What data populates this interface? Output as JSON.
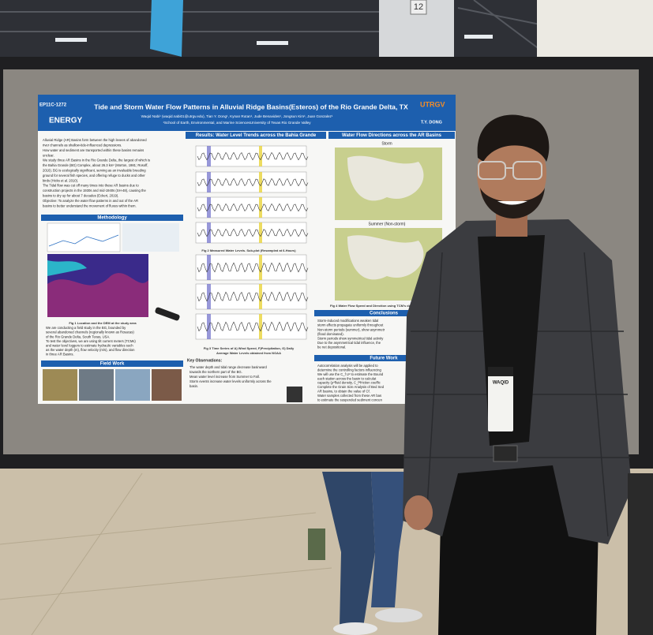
{
  "sign": {
    "number": "12"
  },
  "poster": {
    "id": "EP11C-1272",
    "title": "Tide and Storm Water Flow Patterns in Alluvial Ridge Basins(Esteros) of the Rio Grande Delta, TX",
    "authors": "Waqid Nabi¹ (waqid.nabi01@utrgv.edu), Tian Y. Dong¹, Kynan Rutan¹, Jude Benavides¹, Jongsun Kim¹, Juan Gonzalez¹",
    "affiliation": "¹School of Earth, Environmental, and Marine SciencesUniversity of Texas Rio Grande Valley",
    "logos": [
      "ENERGY",
      "UTRGV",
      "T.Y. DONG"
    ],
    "intro": [
      "Alluvial Ridge (AR) Basins form between the high levees of abandoned",
      "river channels as shallow-tide-influenced depressions.",
      "How water and sediment are transported within these basins remains",
      "unclear.",
      "We study three AR Basins in the Rio Grande Delta, the largest of which is",
      "the Bahia Grande (BG) Complex, about 26.3 km² (Morton, 1981; Rosoff,",
      "2016). BG is ecologically significant, serving as an invaluable breeding",
      "ground for several fish species, and offering refuge to ducks and other",
      "birds (Hicks et al. 2010).",
      "The Tidal flow was cut off many times into these AR basins due to",
      "construction projects in the 1930s and mid-1940s (SH-48), causing the",
      "basins to dry up for about 7 decades (Eckert, 2019).",
      "Objective: To analyze the water flow patterns in and out of the AR",
      "basins to better understand the movement of fluxes within them."
    ],
    "sections": {
      "methodology": "Methodology",
      "results": "Results: Water Level Trends across the Bahia Grande",
      "flow": "Water Flow Directions across the AR Basins",
      "conclusions": "Conclusions",
      "future": "Future Work",
      "field": "Field Work",
      "key": "Key Observations:"
    },
    "map_labels": [
      "Storm",
      "Summer (Non-storm)"
    ],
    "captions": [
      "Fig 1 Location and the DEM at the study area",
      "Fig 2 Measured Water Levels. Sub-plot (Resampled at 6-Hours)",
      "Fig 3 Time Series of A) Wind Speed, F)Precipitation, G) Daily",
      "Average Water Levels obtained from NOAA",
      "Fig 4 Water Flow Speed and Direction using TCM's during"
    ],
    "method_text": [
      "We are conducting a field study in the BG, bounded by",
      "several abandoned channels (regionally known as Rosacas)",
      "of the Rio Grande Delta, South Texas, USA.",
      "To test the objectives, we are using tilt current meters (TCMs)",
      "and water level loggers to estimate hydraulic variables such",
      "as the water depth (m), flow velocity (m/s), and flow direction",
      "in three AR Basins."
    ],
    "key_text": [
      "The water depth and tidal range decrease basinward",
      "towards the northern part of the BG.",
      "Mean water level increase from Summer to Fall.",
      "Storm events increase water levels uniformly across the",
      "basin."
    ],
    "conclusions_text": [
      "Storm-induced modifications weaken tidal",
      "storm effects propagate uniformly throughout",
      "Non-storm periods (summer), show asymmetr",
      "(flood dominated).",
      "Storm periods show symmetrical tidal activity",
      "Due to the asymmetrical tidal influence, the",
      "be net depositional."
    ],
    "future_text": [
      "Autocorrelation analysis will be applied to",
      "determine the controlling factors influencing",
      "We will use the C_f U² to estimate the Bound",
      "each station across the basin to calculat",
      "capacity (ρ*fluid density, C_f*friction coeffic",
      "Complete the Grain Size Analysis of Bed Sed",
      "AR basins, to obtain the value of Cf.",
      "Water samples collected from these AR bas",
      "to estimate the suspended sediment concen"
    ]
  },
  "badge": {
    "name": "WAQID"
  }
}
